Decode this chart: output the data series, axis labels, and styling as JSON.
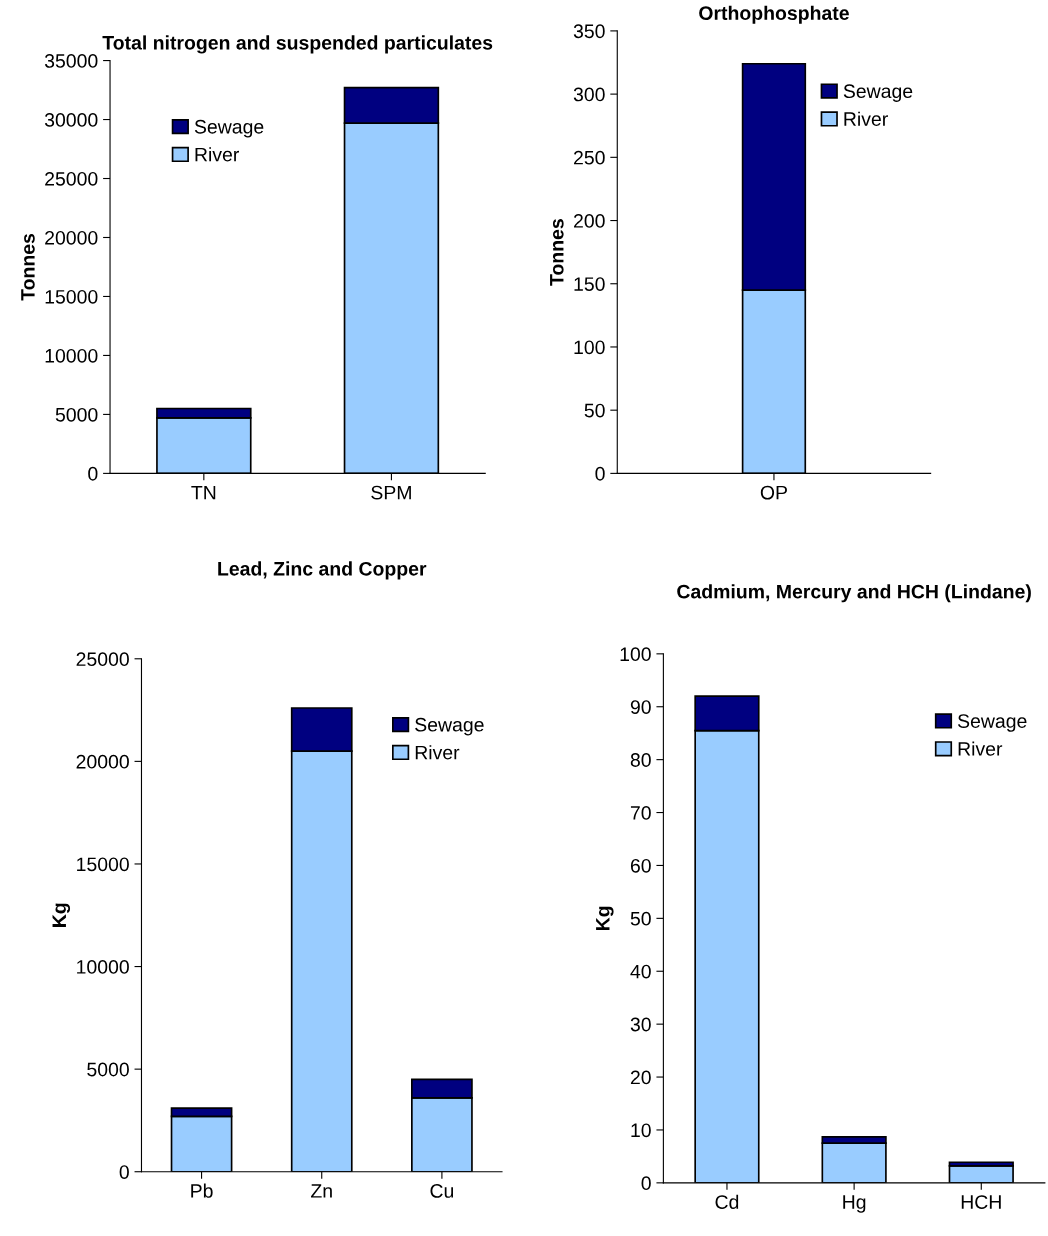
{
  "chart_data": [
    {
      "type": "bar",
      "title": "Total nitrogen and suspended particulates",
      "ylabel": "Tonnes",
      "categories": [
        "TN",
        "SPM"
      ],
      "stacked": true,
      "legend": "top left",
      "ylim": [
        0,
        35000
      ],
      "yticks": [
        0,
        5000,
        10000,
        15000,
        20000,
        25000,
        30000,
        35000
      ],
      "series": [
        {
          "name": "River",
          "color": "#99ccff",
          "values": [
            4700,
            29700
          ]
        },
        {
          "name": "Sewage",
          "color": "#000080",
          "values": [
            800,
            3000
          ]
        }
      ]
    },
    {
      "type": "bar",
      "title": "Orthophosphate",
      "ylabel": "Tonnes",
      "categories": [
        "OP"
      ],
      "stacked": true,
      "legend": "top right",
      "ylim": [
        0,
        350
      ],
      "yticks": [
        0,
        50,
        100,
        150,
        200,
        250,
        300,
        350
      ],
      "series": [
        {
          "name": "River",
          "color": "#99ccff",
          "values": [
            145
          ]
        },
        {
          "name": "Sewage",
          "color": "#000080",
          "values": [
            179
          ]
        }
      ]
    },
    {
      "type": "bar",
      "title": "Lead, Zinc and Copper",
      "ylabel": "Kg",
      "categories": [
        "Pb",
        "Zn",
        "Cu"
      ],
      "stacked": true,
      "legend": "top right",
      "ylim": [
        0,
        25000
      ],
      "yticks": [
        0,
        5000,
        10000,
        15000,
        20000,
        25000
      ],
      "series": [
        {
          "name": "River",
          "color": "#99ccff",
          "values": [
            2700,
            20500,
            3600
          ]
        },
        {
          "name": "Sewage",
          "color": "#000080",
          "values": [
            400,
            2100,
            900
          ]
        }
      ]
    },
    {
      "type": "bar",
      "title": "Cadmium, Mercury and HCH (Lindane)",
      "ylabel": "Kg",
      "categories": [
        "Cd",
        "Hg",
        "HCH"
      ],
      "stacked": true,
      "legend": "top right",
      "ylim": [
        0,
        100
      ],
      "yticks": [
        0,
        10,
        20,
        30,
        40,
        50,
        60,
        70,
        80,
        90,
        100
      ],
      "series": [
        {
          "name": "River",
          "color": "#99ccff",
          "values": [
            85.5,
            7.5,
            3.2
          ]
        },
        {
          "name": "Sewage",
          "color": "#000080",
          "values": [
            6.5,
            1.2,
            0.7
          ]
        }
      ]
    }
  ]
}
